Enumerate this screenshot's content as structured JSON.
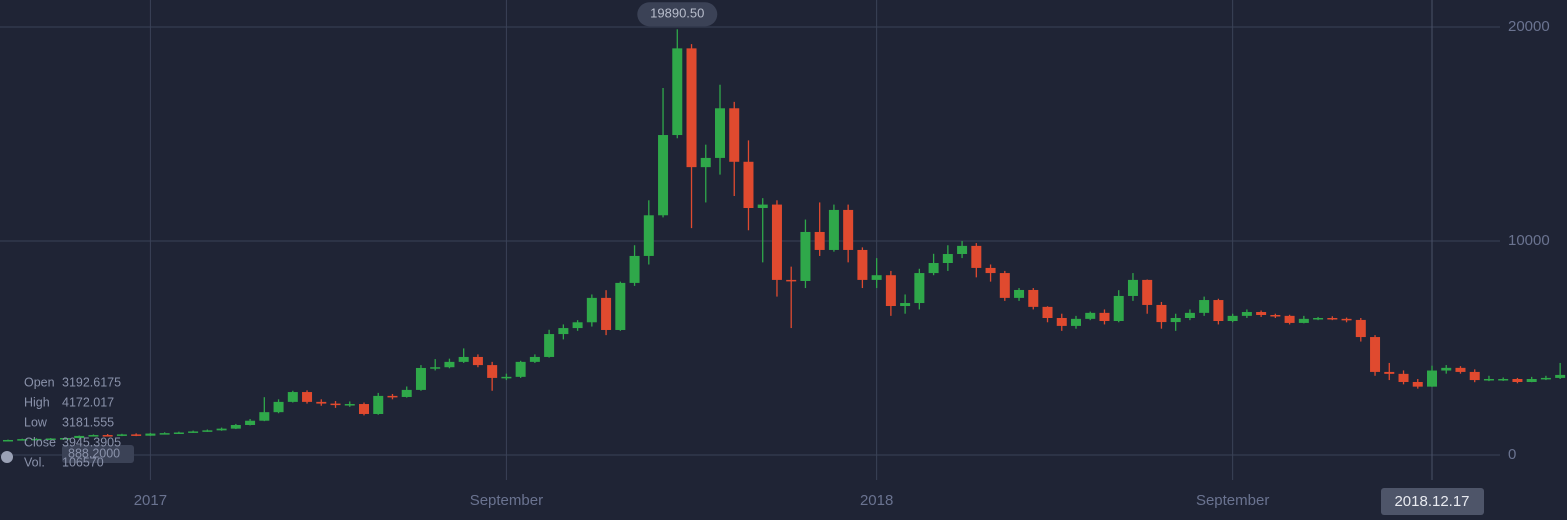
{
  "chart_data": {
    "type": "candlestick",
    "categories": [
      null,
      null,
      null,
      null,
      null,
      null,
      null,
      null,
      null,
      null,
      "2017",
      null,
      null,
      null,
      null,
      null,
      null,
      null,
      null,
      null,
      null,
      null,
      null,
      null,
      null,
      null,
      null,
      null,
      null,
      null,
      null,
      null,
      null,
      null,
      null,
      "September",
      null,
      null,
      null,
      null,
      null,
      null,
      null,
      null,
      null,
      null,
      null,
      null,
      null,
      null,
      null,
      null,
      null,
      null,
      null,
      null,
      null,
      null,
      null,
      null,
      null,
      "2018",
      null,
      null,
      null,
      null,
      null,
      null,
      null,
      null,
      null,
      null,
      null,
      null,
      null,
      null,
      null,
      null,
      null,
      null,
      null,
      null,
      null,
      null,
      null,
      null,
      "September",
      null,
      null,
      null,
      null,
      null,
      null,
      null,
      null,
      null,
      null,
      null,
      null,
      null,
      null,
      null,
      null,
      null,
      null,
      null,
      null,
      null,
      null,
      null
    ],
    "open": [
      650,
      700,
      740,
      750,
      770,
      790,
      890,
      930,
      900,
      960,
      900,
      1000,
      1020,
      1050,
      1100,
      1150,
      1230,
      1400,
      1600,
      2000,
      2480,
      2940,
      2480,
      2400,
      2350,
      2380,
      1915,
      2760,
      2710,
      3040,
      4065,
      4100,
      4350,
      4580,
      4200,
      3600,
      3650,
      4350,
      4580,
      5650,
      5930,
      6200,
      7340,
      5840,
      8040,
      9300,
      11200,
      14950,
      19000,
      13450,
      13880,
      16200,
      13700,
      11540,
      11700,
      8180,
      8130,
      10420,
      9580,
      11450,
      9580,
      8180,
      8400,
      6960,
      7100,
      8500,
      8970,
      9390,
      9770,
      8740,
      8500,
      7340,
      7710,
      6920,
      6400,
      6030,
      6360,
      6640,
      6260,
      7430,
      8180,
      7010,
      6210,
      6400,
      6640,
      7240,
      6260,
      6500,
      6680,
      6540,
      6500,
      6170,
      6360,
      6400,
      6360,
      6310,
      5510,
      3880,
      3790,
      3410,
      3192.6175,
      3945.3905,
      4070,
      3880,
      3500,
      3550,
      3550,
      3410,
      3550,
      3600
    ],
    "high": [
      720,
      760,
      780,
      790,
      820,
      910,
      960,
      980,
      990,
      1010,
      1030,
      1060,
      1090,
      1140,
      1190,
      1280,
      1450,
      1680,
      2700,
      2600,
      3000,
      3020,
      2600,
      2520,
      2500,
      2450,
      2900,
      2850,
      3200,
      4200,
      4480,
      4500,
      4980,
      4700,
      4350,
      3800,
      4400,
      4700,
      5850,
      6100,
      6300,
      7500,
      7700,
      8100,
      9800,
      11900,
      17150,
      19890.5,
      19200,
      14500,
      17300,
      16500,
      14700,
      12000,
      11900,
      8800,
      11000,
      11800,
      11700,
      11700,
      9700,
      9200,
      8600,
      7500,
      8700,
      9400,
      9800,
      10000,
      9900,
      8900,
      8600,
      7800,
      7800,
      6950,
      6600,
      6500,
      6700,
      6800,
      7700,
      8500,
      8200,
      7150,
      6600,
      6800,
      7400,
      7300,
      6600,
      6800,
      6750,
      6600,
      6550,
      6500,
      6450,
      6480,
      6420,
      6400,
      5600,
      4300,
      3950,
      3550,
      4172.017,
      4200,
      4150,
      4000,
      3700,
      3620,
      3600,
      3650,
      3700,
      4300
    ],
    "low": [
      640,
      690,
      730,
      740,
      760,
      780,
      870,
      880,
      880,
      880,
      890,
      980,
      1000,
      1030,
      1080,
      1130,
      1210,
      1380,
      1580,
      1950,
      2450,
      2400,
      2300,
      2200,
      2250,
      1850,
      1880,
      2600,
      2680,
      3000,
      3950,
      4050,
      4300,
      4100,
      3000,
      3500,
      3600,
      4300,
      4550,
      5400,
      5800,
      6000,
      5600,
      5800,
      7900,
      8900,
      11100,
      14800,
      10600,
      11800,
      13100,
      12100,
      10500,
      9000,
      7400,
      5930,
      7800,
      9300,
      9500,
      9000,
      7800,
      7800,
      6500,
      6600,
      6800,
      8400,
      8600,
      9200,
      8300,
      8100,
      7200,
      7200,
      6800,
      6200,
      5800,
      5900,
      6300,
      6100,
      6200,
      7200,
      6600,
      5900,
      5800,
      6300,
      6500,
      6100,
      6200,
      6400,
      6450,
      6400,
      6100,
      6150,
      6300,
      6300,
      6200,
      5300,
      3700,
      3500,
      3300,
      3100,
      3181.555,
      3800,
      3800,
      3400,
      3450,
      3460,
      3350,
      3400,
      3500,
      3550
    ],
    "close": [
      700,
      740,
      750,
      770,
      790,
      890,
      930,
      900,
      960,
      900,
      1000,
      1020,
      1050,
      1100,
      1150,
      1230,
      1400,
      1600,
      2000,
      2480,
      2940,
      2480,
      2400,
      2350,
      2380,
      1915,
      2760,
      2710,
      3040,
      4065,
      4100,
      4350,
      4580,
      4200,
      3600,
      3650,
      4350,
      4580,
      5650,
      5930,
      6200,
      7340,
      5840,
      8040,
      9300,
      11200,
      14950,
      19000,
      13450,
      13880,
      16200,
      13700,
      11540,
      11700,
      8180,
      8130,
      10420,
      9580,
      11450,
      9580,
      8180,
      8400,
      6960,
      7100,
      8500,
      8970,
      9390,
      9770,
      8740,
      8500,
      7340,
      7710,
      6920,
      6400,
      6030,
      6360,
      6640,
      6260,
      7430,
      8180,
      7010,
      6210,
      6400,
      6640,
      7240,
      6260,
      6500,
      6680,
      6540,
      6500,
      6170,
      6360,
      6400,
      6360,
      6310,
      5510,
      3880,
      3790,
      3410,
      3192.6175,
      3945.3905,
      4070,
      3880,
      3500,
      3550,
      3550,
      3410,
      3550,
      3600,
      3740
    ],
    "up_color": "#2fa84a",
    "down_color": "#e04a2f",
    "max_label": {
      "value": 19890.5,
      "label": "19890.50"
    },
    "ylim": [
      -1170,
      21260
    ],
    "yticks": [
      0,
      10000,
      20000
    ],
    "grid": true,
    "crosshair": {
      "x_label": "2018.12.17",
      "y_label": "888.2000"
    },
    "tooltip": [
      [
        "Open",
        "3192.6175"
      ],
      [
        "High",
        "4172.017"
      ],
      [
        "Low",
        "3181.555"
      ],
      [
        "Close",
        "3945.3905"
      ],
      [
        "Vol.",
        "106570"
      ]
    ]
  }
}
